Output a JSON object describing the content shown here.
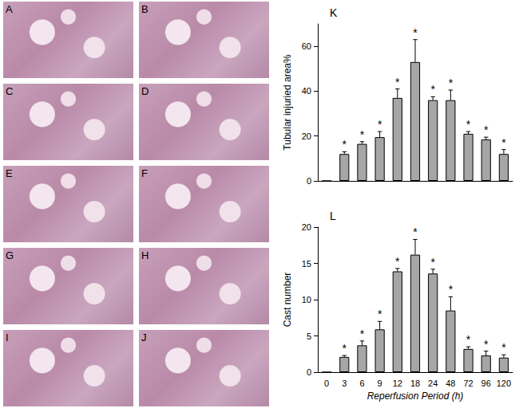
{
  "image_panels": [
    "A",
    "B",
    "C",
    "D",
    "E",
    "F",
    "G",
    "H",
    "I",
    "J"
  ],
  "chart_data": [
    {
      "type": "bar",
      "title": "K",
      "categories": [
        "0",
        "3",
        "6",
        "9",
        "12",
        "18",
        "24",
        "48",
        "72",
        "96",
        "120"
      ],
      "values": [
        0,
        12,
        16.5,
        19.5,
        37,
        53,
        36,
        36,
        21,
        18.5,
        12
      ],
      "errors": [
        null,
        1,
        1,
        2.5,
        4,
        10,
        1.5,
        4.5,
        1,
        1,
        2
      ],
      "significance": [
        null,
        "*",
        "*",
        "*",
        "*",
        "*",
        "*",
        "*",
        "*",
        "*",
        "*"
      ],
      "ylabel": "Tubular injuried area%",
      "ylim": [
        0,
        70
      ],
      "yticks": [
        0,
        20,
        40,
        60
      ],
      "color": "#a6a6a6",
      "tick_labels": "y"
    },
    {
      "type": "bar",
      "title": "L",
      "categories": [
        "0",
        "3",
        "6",
        "9",
        "12",
        "18",
        "24",
        "48",
        "72",
        "96",
        "120"
      ],
      "values": [
        0,
        2.1,
        3.7,
        5.9,
        13.9,
        16.2,
        13.6,
        8.5,
        3.2,
        2.3,
        2.0
      ],
      "errors": [
        null,
        0.2,
        0.6,
        1.1,
        0.4,
        2.1,
        0.6,
        1.9,
        0.3,
        0.6,
        0.4
      ],
      "significance": [
        null,
        "*",
        "*",
        "*",
        "*",
        "*",
        "*",
        "*",
        "*",
        "*",
        "*"
      ],
      "ylabel": "Cast number",
      "xlabel": "Reperfusion Period (h)",
      "ylim": [
        0,
        20
      ],
      "yticks": [
        0,
        5,
        10,
        15,
        20
      ],
      "color": "#a6a6a6"
    }
  ]
}
